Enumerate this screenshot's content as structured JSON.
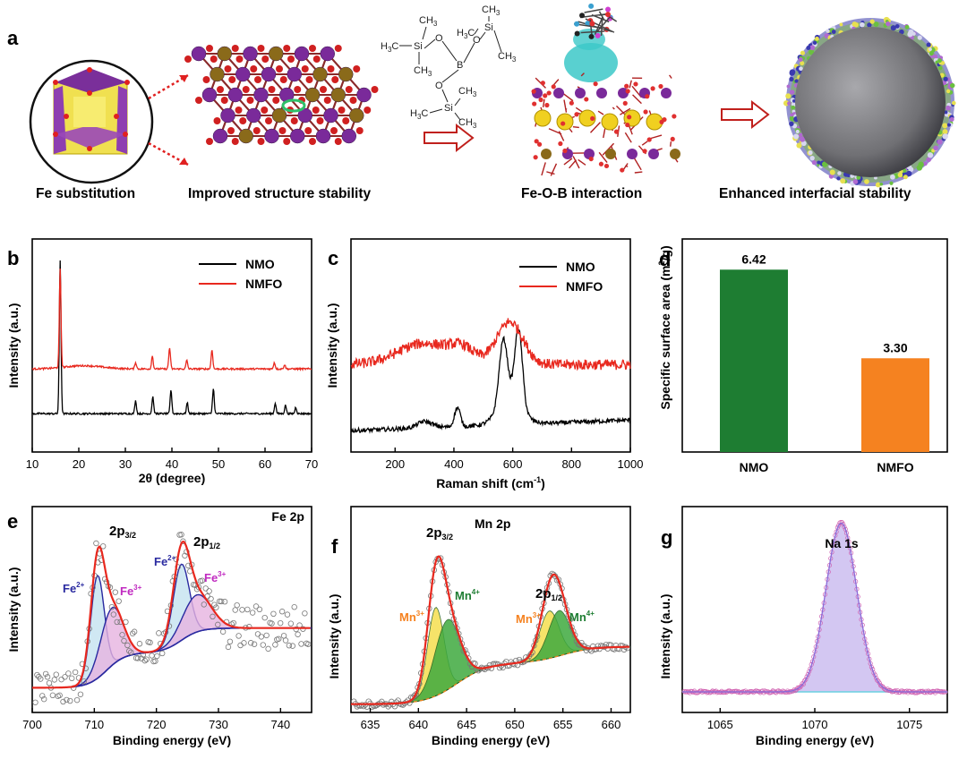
{
  "figure": {
    "panel_a": {
      "letter": "a",
      "captions": [
        "Fe substitution",
        "Improved structure stability",
        "Fe-O-B interaction",
        "Enhanced interfacial stability"
      ],
      "molecule_atoms": {
        "si": "Si",
        "b": "B",
        "o": "O"
      }
    }
  },
  "colors": {
    "black": "#000000",
    "red": "#e8281e",
    "green": "#1e7d32",
    "orange": "#f58220",
    "blue": "#2a2aa0",
    "pink_fill": "#e6b3e0",
    "lightblue_fill": "#bfe0ee",
    "yellow_fill": "#f5df50",
    "green_fill": "#3faa3f",
    "lavender_fill": "#cbbdf0"
  },
  "chart_data": [
    {
      "id": "b",
      "type": "line",
      "letter": "b",
      "xlabel": "2θ (degree)",
      "ylabel": "Intensity (a.u.)",
      "xlim": [
        10,
        70
      ],
      "xticks": [
        10,
        20,
        30,
        40,
        50,
        60,
        70
      ],
      "series": [
        {
          "name": "NMO",
          "color": "#000000",
          "baseline": 0.18,
          "peaks": [
            [
              16.0,
              0.72
            ],
            [
              32.2,
              0.06
            ],
            [
              35.9,
              0.08
            ],
            [
              39.8,
              0.11
            ],
            [
              43.3,
              0.05
            ],
            [
              48.9,
              0.12
            ],
            [
              62.2,
              0.05
            ],
            [
              64.4,
              0.04
            ],
            [
              66.6,
              0.03
            ]
          ]
        },
        {
          "name": "NMFO",
          "color": "#e8281e",
          "baseline": 0.39,
          "peaks": [
            [
              16.0,
              0.46
            ],
            [
              32.2,
              0.03
            ],
            [
              35.8,
              0.06
            ],
            [
              39.5,
              0.1
            ],
            [
              43.2,
              0.04
            ],
            [
              48.6,
              0.09
            ],
            [
              62.0,
              0.03
            ],
            [
              64.2,
              0.02
            ]
          ]
        }
      ],
      "legend": [
        "NMO",
        "NMFO"
      ]
    },
    {
      "id": "c",
      "type": "line",
      "letter": "c",
      "xlabel": "Raman shift (cm",
      "xlabel_sup": "-1",
      "xlabel_end": ")",
      "ylabel": "Intensity (a.u.)",
      "xlim": [
        50,
        1000
      ],
      "xticks": [
        200,
        400,
        600,
        800,
        1000
      ],
      "series": [
        {
          "name": "NMO",
          "color": "#000000"
        },
        {
          "name": "NMFO",
          "color": "#e8281e"
        }
      ],
      "legend": [
        "NMO",
        "NMFO"
      ]
    },
    {
      "id": "d",
      "type": "bar",
      "letter": "d",
      "categories": [
        "NMO",
        "NMFO"
      ],
      "values": [
        6.42,
        3.3
      ],
      "labels": [
        "6.42",
        "3.30"
      ],
      "colors": [
        "#1e7d32",
        "#f58220"
      ],
      "ylabel": "Specific surface area (m",
      "ylabel_sup": "2",
      "ylabel_end": "/g)",
      "ylim": [
        0,
        7.5
      ]
    },
    {
      "id": "e",
      "type": "line",
      "letter": "e",
      "title": "Fe 2p",
      "xlabel": "Binding energy (eV)",
      "ylabel": "Intensity (a.u.)",
      "xlim": [
        700,
        745
      ],
      "xticks": [
        700,
        710,
        720,
        730,
        740
      ],
      "annotations": {
        "p32": "2p",
        "p32_sub": "3/2",
        "p12": "2p",
        "p12_sub": "1/2",
        "fe2": "Fe",
        "fe2_sup": "2+",
        "fe3": "Fe",
        "fe3_sup": "3+"
      }
    },
    {
      "id": "f",
      "type": "line",
      "letter": "f",
      "title": "Mn 2p",
      "xlabel": "Binding energy (eV)",
      "ylabel": "Intensity (a.u.)",
      "xlim": [
        633,
        662
      ],
      "xticks": [
        635,
        640,
        645,
        650,
        655,
        660
      ],
      "annotations": {
        "p32": "2p",
        "p32_sub": "3/2",
        "p12": "2p",
        "p12_sub": "1/2",
        "mn3": "Mn",
        "mn3_sup": "3+",
        "mn4": "Mn",
        "mn4_sup": "4+"
      }
    },
    {
      "id": "g",
      "type": "line",
      "letter": "g",
      "title": "Na 1s",
      "xlabel": "Binding energy (eV)",
      "ylabel": "Intensity (a.u.)",
      "xlim": [
        1063,
        1077
      ],
      "xticks": [
        1065,
        1070,
        1075
      ]
    }
  ]
}
